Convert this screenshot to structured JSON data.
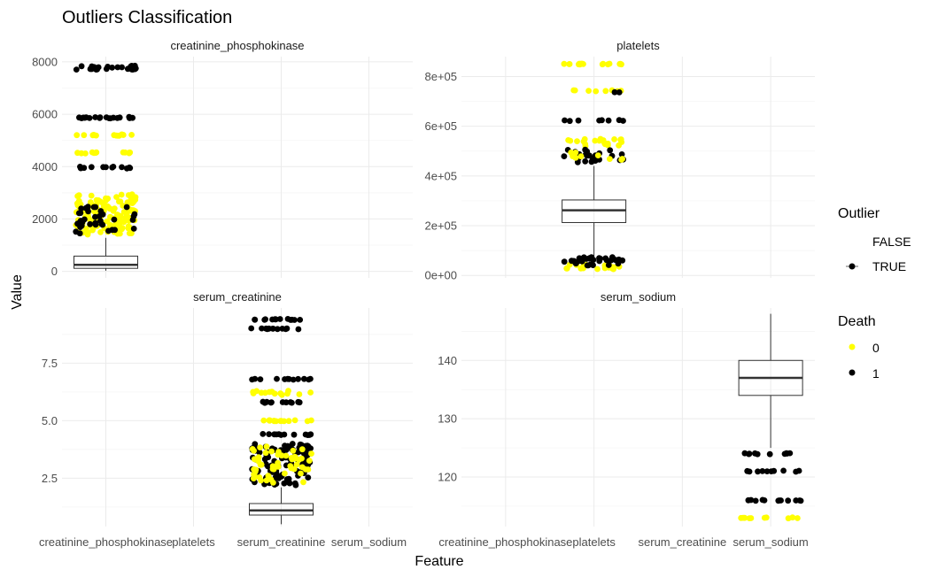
{
  "chart_data": {
    "type": "box",
    "title": "Outliers Classification",
    "xlabel": "Feature",
    "ylabel": "Value",
    "categories": [
      "creatinine_phosphokinase",
      "platelets",
      "serum_creatinine",
      "serum_sodium"
    ],
    "colors": {
      "death_0": "#ffff00",
      "death_1": "#000000",
      "box_line": "#333333",
      "grid": "#ebebeb"
    },
    "legends": [
      {
        "title": "Outlier",
        "items": [
          {
            "label": "FALSE",
            "shape": "none"
          },
          {
            "label": "TRUE",
            "shape": "dot"
          }
        ]
      },
      {
        "title": "Death",
        "items": [
          {
            "label": "0",
            "color": "#ffff00"
          },
          {
            "label": "1",
            "color": "#000000"
          }
        ]
      }
    ],
    "panels": [
      {
        "strip": "creatinine_phosphokinase",
        "category": "creatinine_phosphokinase",
        "show_x_labels": false,
        "ylim": [
          -250,
          8200
        ],
        "yticks": [
          0,
          2000,
          4000,
          6000,
          8000
        ],
        "ytick_labels": [
          "0",
          "2000",
          "4000",
          "6000",
          "8000"
        ],
        "box": {
          "whisker_low": 23,
          "q1": 115,
          "median": 250,
          "q3": 582,
          "whisker_high": 1280
        },
        "outlier_clusters": [
          {
            "y_min": 7700,
            "y_max": 7860,
            "death": 1,
            "n": 26
          },
          {
            "y_min": 5840,
            "y_max": 5900,
            "death": 1,
            "n": 18
          },
          {
            "y_min": 5180,
            "y_max": 5230,
            "death": 0,
            "n": 14
          },
          {
            "y_min": 4500,
            "y_max": 4560,
            "death": 0,
            "n": 12
          },
          {
            "y_min": 3930,
            "y_max": 4000,
            "death": 1,
            "n": 12
          },
          {
            "y_min": 1400,
            "y_max": 2950,
            "death": 0,
            "n": 140
          },
          {
            "y_min": 1400,
            "y_max": 2500,
            "death": 1,
            "n": 36
          }
        ]
      },
      {
        "strip": "platelets",
        "category": "platelets",
        "show_x_labels": false,
        "ylim": [
          -10000,
          880000
        ],
        "yticks": [
          0,
          200000,
          400000,
          600000,
          800000
        ],
        "ytick_labels": [
          "0e+00",
          "2e+05",
          "4e+05",
          "6e+05",
          "8e+05"
        ],
        "box": {
          "whisker_low": 75000,
          "q1": 212500,
          "median": 262000,
          "q3": 303500,
          "whisker_high": 440000
        },
        "outlier_clusters": [
          {
            "y_min": 848000,
            "y_max": 852000,
            "death": 0,
            "n": 16
          },
          {
            "y_min": 740000,
            "y_max": 745000,
            "death": 0,
            "n": 8
          },
          {
            "y_min": 735000,
            "y_max": 742000,
            "death": 1,
            "n": 2
          },
          {
            "y_min": 620000,
            "y_max": 625000,
            "death": 1,
            "n": 8
          },
          {
            "y_min": 520000,
            "y_max": 550000,
            "death": 0,
            "n": 20
          },
          {
            "y_min": 455000,
            "y_max": 510000,
            "death": 1,
            "n": 26
          },
          {
            "y_min": 460000,
            "y_max": 500000,
            "death": 0,
            "n": 10
          },
          {
            "y_min": 25000,
            "y_max": 45000,
            "death": 0,
            "n": 20
          },
          {
            "y_min": 40000,
            "y_max": 75000,
            "death": 1,
            "n": 30
          }
        ]
      },
      {
        "strip": "serum_creatinine",
        "category": "serum_creatinine",
        "show_x_labels": true,
        "ylim": [
          0.4,
          9.9
        ],
        "yticks": [
          2.5,
          5.0,
          7.5
        ],
        "ytick_labels": [
          "2.5",
          "5.0",
          "7.5"
        ],
        "box": {
          "whisker_low": 0.5,
          "q1": 0.9,
          "median": 1.1,
          "q3": 1.4,
          "whisker_high": 2.1
        },
        "outlier_clusters": [
          {
            "y_min": 9.4,
            "y_max": 9.4,
            "death": 1,
            "n": 14
          },
          {
            "y_min": 9.0,
            "y_max": 9.0,
            "death": 1,
            "n": 12
          },
          {
            "y_min": 6.8,
            "y_max": 6.8,
            "death": 1,
            "n": 12
          },
          {
            "y_min": 6.1,
            "y_max": 6.3,
            "death": 0,
            "n": 14
          },
          {
            "y_min": 5.8,
            "y_max": 5.8,
            "death": 1,
            "n": 12
          },
          {
            "y_min": 5.0,
            "y_max": 5.0,
            "death": 0,
            "n": 14
          },
          {
            "y_min": 4.4,
            "y_max": 4.4,
            "death": 1,
            "n": 12
          },
          {
            "y_min": 2.2,
            "y_max": 4.0,
            "death": 1,
            "n": 110
          },
          {
            "y_min": 2.3,
            "y_max": 3.9,
            "death": 0,
            "n": 55
          }
        ]
      },
      {
        "strip": "serum_sodium",
        "category": "serum_sodium",
        "show_x_labels": true,
        "ylim": [
          111.5,
          149
        ],
        "yticks": [
          120,
          130,
          140
        ],
        "ytick_labels": [
          "120",
          "130",
          "140"
        ],
        "box": {
          "whisker_low": 125,
          "q1": 134,
          "median": 137,
          "q3": 140,
          "whisker_high": 148
        },
        "outlier_clusters": [
          {
            "y_min": 124,
            "y_max": 124,
            "death": 1,
            "n": 10
          },
          {
            "y_min": 121,
            "y_max": 121,
            "death": 1,
            "n": 10
          },
          {
            "y_min": 116,
            "y_max": 116,
            "death": 1,
            "n": 12
          },
          {
            "y_min": 113,
            "y_max": 113,
            "death": 0,
            "n": 10
          }
        ]
      }
    ]
  }
}
